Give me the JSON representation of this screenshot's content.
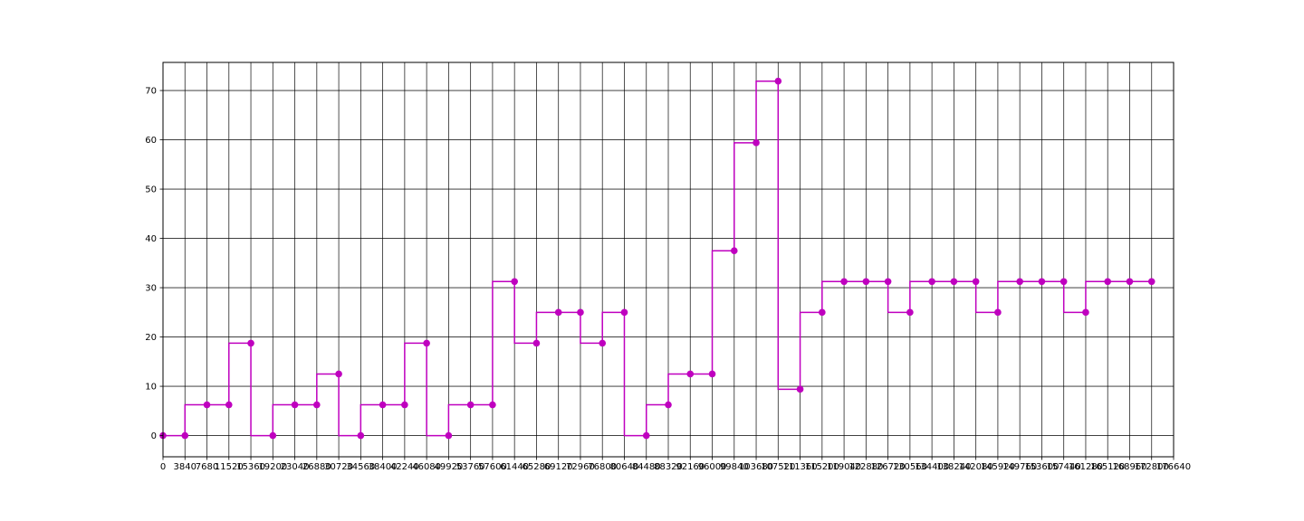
{
  "chart_data": {
    "type": "line",
    "step": "pre",
    "title": "",
    "xlabel": "",
    "ylabel": "",
    "xlim": [
      0,
      176640
    ],
    "ylim": [
      -4.3,
      75.7
    ],
    "grid": true,
    "color": "#bf00bf",
    "x_ticks": [
      0,
      3840,
      7680,
      11520,
      15360,
      19200,
      23040,
      26880,
      30720,
      34560,
      38400,
      42240,
      46080,
      49920,
      53760,
      57600,
      61440,
      65280,
      69120,
      72960,
      76800,
      80640,
      84480,
      88320,
      92160,
      96000,
      99840,
      103680,
      107520,
      111360,
      115200,
      119040,
      122880,
      126720,
      130560,
      134400,
      138240,
      142080,
      145920,
      149760,
      153600,
      157440,
      161280,
      165120,
      168960,
      172800,
      176640
    ],
    "x_tick_labels": [
      "0",
      "3840",
      "7680",
      "11520",
      "15360",
      "19200",
      "23040",
      "26880",
      "30720",
      "34560",
      "38400",
      "42240",
      "46080",
      "49920",
      "53760",
      "57600",
      "61440",
      "65280",
      "69120",
      "72960",
      "76800",
      "80640",
      "84480",
      "88320",
      "92160",
      "96000",
      "99840",
      "103680",
      "107520",
      "111360",
      "115200",
      "119040",
      "122880",
      "126720",
      "130560",
      "134400",
      "138240",
      "142080",
      "145920",
      "149760",
      "153600",
      "157440",
      "161280",
      "165120",
      "168960",
      "172800",
      "176640"
    ],
    "y_ticks": [
      0,
      10,
      20,
      30,
      40,
      50,
      60,
      70
    ],
    "y_tick_labels": [
      "0",
      "10",
      "20",
      "30",
      "40",
      "50",
      "60",
      "70"
    ],
    "series": [
      {
        "x": [
          0,
          3840,
          7680,
          11520,
          15360,
          19200,
          23040,
          26880,
          30720,
          34560,
          38400,
          42240,
          46080,
          49920,
          53760,
          57600,
          61440,
          65280,
          69120,
          72960,
          76800,
          80640,
          84480,
          88320,
          92160,
          96000,
          99840,
          103680,
          107520,
          111360,
          115200,
          119040,
          122880,
          126720,
          130560,
          134400,
          138240,
          142080,
          145920,
          149760,
          153600,
          157440,
          161280,
          165120,
          168960,
          172800
        ],
        "y": [
          0,
          0,
          6.25,
          6.25,
          18.75,
          0,
          6.25,
          6.25,
          12.5,
          0,
          6.25,
          6.25,
          18.75,
          0,
          6.25,
          6.25,
          31.25,
          18.75,
          25,
          25,
          18.75,
          25,
          0,
          6.25,
          12.5,
          12.5,
          37.5,
          59.4,
          71.9,
          9.4,
          25,
          31.25,
          31.25,
          31.25,
          25,
          31.25,
          31.25,
          31.25,
          25,
          31.25,
          31.25,
          31.25,
          25,
          31.25,
          31.25,
          31.25
        ]
      }
    ]
  }
}
